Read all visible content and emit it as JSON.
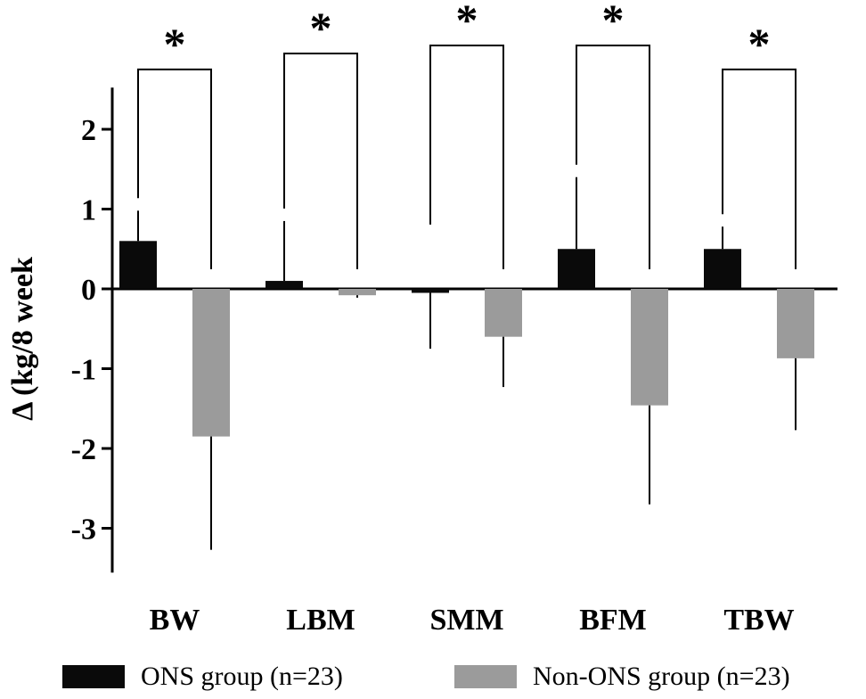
{
  "chart_data": {
    "type": "bar",
    "title": "",
    "xlabel": "",
    "ylabel": "Δ (kg/8 week",
    "ylim": [
      -3.4,
      2.5
    ],
    "yticks": [
      -3,
      -2,
      -1,
      0,
      1,
      2
    ],
    "categories": [
      "BW",
      "LBM",
      "SMM",
      "BFM",
      "TBW"
    ],
    "series": [
      {
        "name": "ONS group (n=23)",
        "color": "#0a0a0a",
        "values": [
          0.6,
          0.1,
          -0.05,
          0.5,
          0.5
        ],
        "error": [
          0.38,
          0.75,
          0.7,
          0.9,
          0.28
        ]
      },
      {
        "name": "Non-ONS group (n=23)",
        "color": "#9b9b9b",
        "values": [
          -1.85,
          -0.08,
          -0.6,
          -1.46,
          -0.87
        ],
        "error": [
          1.42,
          0.03,
          0.63,
          1.24,
          0.9
        ]
      }
    ],
    "significance": [
      {
        "category": "BW",
        "label": "*",
        "y": 2.75
      },
      {
        "category": "LBM",
        "label": "*",
        "y": 2.95
      },
      {
        "category": "SMM",
        "label": "*",
        "y": 3.05
      },
      {
        "category": "BFM",
        "label": "*",
        "y": 3.05
      },
      {
        "category": "TBW",
        "label": "*",
        "y": 2.75
      }
    ],
    "legend": "bottom"
  }
}
